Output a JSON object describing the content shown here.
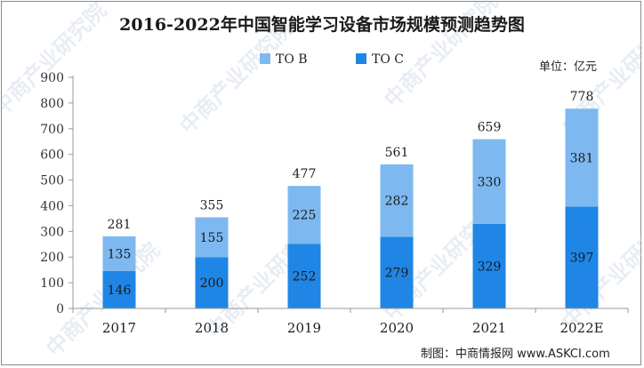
{
  "chart_data": {
    "type": "bar",
    "stacked": true,
    "title": "2016-2022年中国智能学习设备市场规模预测趋势图",
    "unit_label": "单位：亿元",
    "credit": "制图：中商情报网 www.ASKCI.com",
    "watermark": "中商产业研究院",
    "categories": [
      "2017",
      "2018",
      "2019",
      "2020",
      "2021",
      "2022E"
    ],
    "series": [
      {
        "name": "TO C",
        "color": "#1f86e6",
        "values": [
          146,
          200,
          252,
          279,
          329,
          397
        ]
      },
      {
        "name": "TO B",
        "color": "#7db9f0",
        "values": [
          135,
          155,
          225,
          282,
          330,
          381
        ]
      }
    ],
    "totals": [
      281,
      355,
      477,
      561,
      659,
      778
    ],
    "legend_order": [
      "TO B",
      "TO C"
    ],
    "ylim": [
      0,
      900
    ],
    "yticks": [
      0,
      100,
      200,
      300,
      400,
      500,
      600,
      700,
      800,
      900
    ],
    "xlabel": "",
    "ylabel": ""
  }
}
